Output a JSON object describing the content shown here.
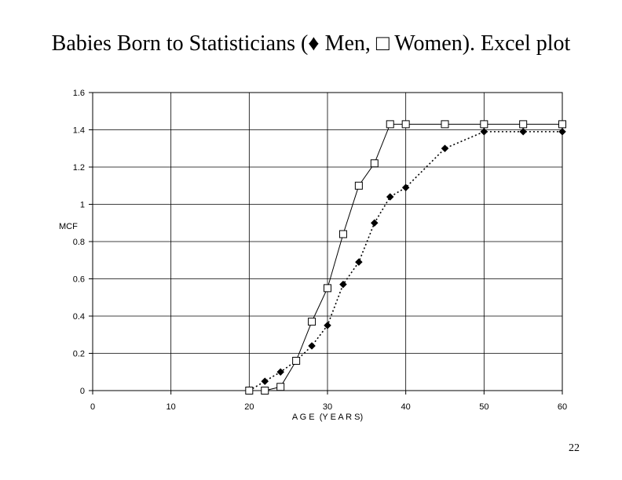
{
  "slide": {
    "title": "Babies Born to Statisticians (♦ Men, □ Women). Excel plot",
    "page_number": "22"
  },
  "chart_data": {
    "type": "line",
    "title": "",
    "xlabel": "A G E  (Y E A R S)",
    "ylabel": "MCF",
    "xlim": [
      0,
      60
    ],
    "ylim": [
      0,
      1.6
    ],
    "xticks": [
      "0",
      "10",
      "20",
      "30",
      "40",
      "50",
      "60"
    ],
    "yticks": [
      "0",
      "0.2",
      "0.4",
      "0.6",
      "0.8",
      "1",
      "1.2",
      "1.4",
      "1.6"
    ],
    "grid": true,
    "legend": "none",
    "series": [
      {
        "name": "Men",
        "marker": "diamond-filled",
        "line_style": "dotted",
        "color": "#000000",
        "points": [
          [
            20,
            0.0
          ],
          [
            22,
            0.05
          ],
          [
            24,
            0.1
          ],
          [
            26,
            0.16
          ],
          [
            28,
            0.24
          ],
          [
            30,
            0.35
          ],
          [
            32,
            0.57
          ],
          [
            34,
            0.69
          ],
          [
            36,
            0.9
          ],
          [
            38,
            1.04
          ],
          [
            40,
            1.09
          ],
          [
            45,
            1.3
          ],
          [
            50,
            1.39
          ],
          [
            55,
            1.39
          ],
          [
            60,
            1.39
          ]
        ]
      },
      {
        "name": "Women",
        "marker": "square-open",
        "line_style": "solid",
        "color": "#000000",
        "points": [
          [
            20,
            0.0
          ],
          [
            22,
            0.0
          ],
          [
            24,
            0.02
          ],
          [
            26,
            0.16
          ],
          [
            28,
            0.37
          ],
          [
            30,
            0.55
          ],
          [
            32,
            0.84
          ],
          [
            34,
            1.1
          ],
          [
            36,
            1.22
          ],
          [
            38,
            1.43
          ],
          [
            40,
            1.43
          ],
          [
            45,
            1.43
          ],
          [
            50,
            1.43
          ],
          [
            55,
            1.43
          ],
          [
            60,
            1.43
          ]
        ]
      }
    ]
  }
}
